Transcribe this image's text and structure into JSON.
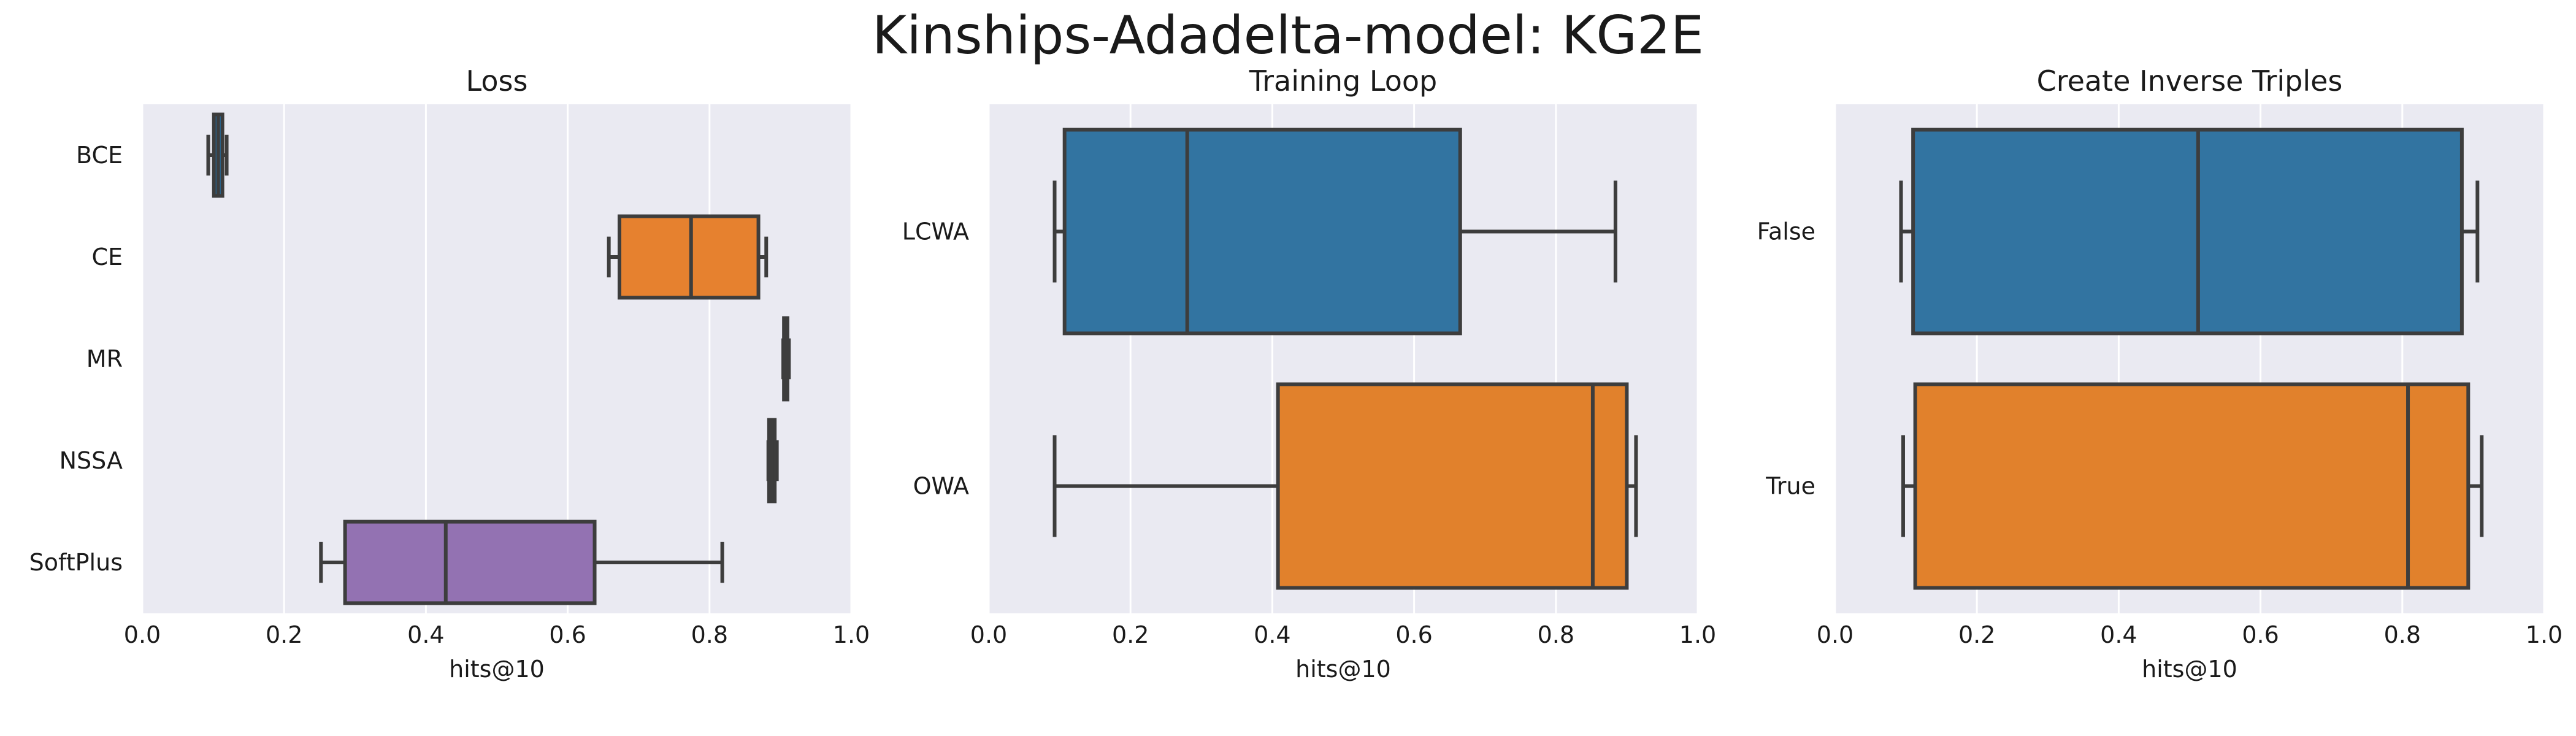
{
  "title": "Kinships-Adadelta-model: KG2E",
  "colors": {
    "background": "#eaeaf2",
    "grid": "#ffffff",
    "line": "#3d3d3d"
  },
  "chart_data": [
    {
      "type": "box",
      "orientation": "horizontal",
      "title": "Loss",
      "xlabel": "hits@10",
      "ylabel": "",
      "xlim": [
        0,
        1
      ],
      "xticks": [
        "0.0",
        "0.2",
        "0.4",
        "0.6",
        "0.8",
        "1.0"
      ],
      "grid": true,
      "categories": [
        "BCE",
        "CE",
        "MR",
        "NSSA",
        "SoftPlus"
      ],
      "boxes": [
        {
          "label": "BCE",
          "color": "#1f77b4",
          "whislo": 0.093,
          "q1": 0.101,
          "med": 0.107,
          "q3": 0.113,
          "whishi": 0.119
        },
        {
          "label": "CE",
          "color": "#e6812f",
          "whislo": 0.658,
          "q1": 0.673,
          "med": 0.774,
          "q3": 0.869,
          "whishi": 0.88
        },
        {
          "label": "MR",
          "color": "#3a923a",
          "whislo": 0.904,
          "q1": 0.905,
          "med": 0.908,
          "q3": 0.91,
          "whishi": 0.912
        },
        {
          "label": "NSSA",
          "color": "#c03d3e",
          "whislo": 0.883,
          "q1": 0.884,
          "med": 0.888,
          "q3": 0.892,
          "whishi": 0.895
        },
        {
          "label": "SoftPlus",
          "color": "#9372b2",
          "whislo": 0.252,
          "q1": 0.286,
          "med": 0.428,
          "q3": 0.638,
          "whishi": 0.818
        }
      ]
    },
    {
      "type": "box",
      "orientation": "horizontal",
      "title": "Training Loop",
      "xlabel": "hits@10",
      "ylabel": "",
      "xlim": [
        0,
        1
      ],
      "xticks": [
        "0.0",
        "0.2",
        "0.4",
        "0.6",
        "0.8",
        "1.0"
      ],
      "grid": true,
      "categories": [
        "LCWA",
        "OWA"
      ],
      "boxes": [
        {
          "label": "LCWA",
          "color": "#3274a1",
          "whislo": 0.093,
          "q1": 0.107,
          "med": 0.28,
          "q3": 0.665,
          "whishi": 0.884
        },
        {
          "label": "OWA",
          "color": "#e1812c",
          "whislo": 0.093,
          "q1": 0.408,
          "med": 0.852,
          "q3": 0.9,
          "whishi": 0.913
        }
      ]
    },
    {
      "type": "box",
      "orientation": "horizontal",
      "title": "Create Inverse Triples",
      "xlabel": "hits@10",
      "ylabel": "",
      "xlim": [
        0,
        1
      ],
      "xticks": [
        "0.0",
        "0.2",
        "0.4",
        "0.6",
        "0.8",
        "1.0"
      ],
      "grid": true,
      "categories": [
        "False",
        "True"
      ],
      "boxes": [
        {
          "label": "False",
          "color": "#3274a1",
          "whislo": 0.093,
          "q1": 0.11,
          "med": 0.512,
          "q3": 0.884,
          "whishi": 0.906
        },
        {
          "label": "True",
          "color": "#e1812c",
          "whislo": 0.096,
          "q1": 0.113,
          "med": 0.808,
          "q3": 0.893,
          "whishi": 0.912
        }
      ]
    }
  ]
}
